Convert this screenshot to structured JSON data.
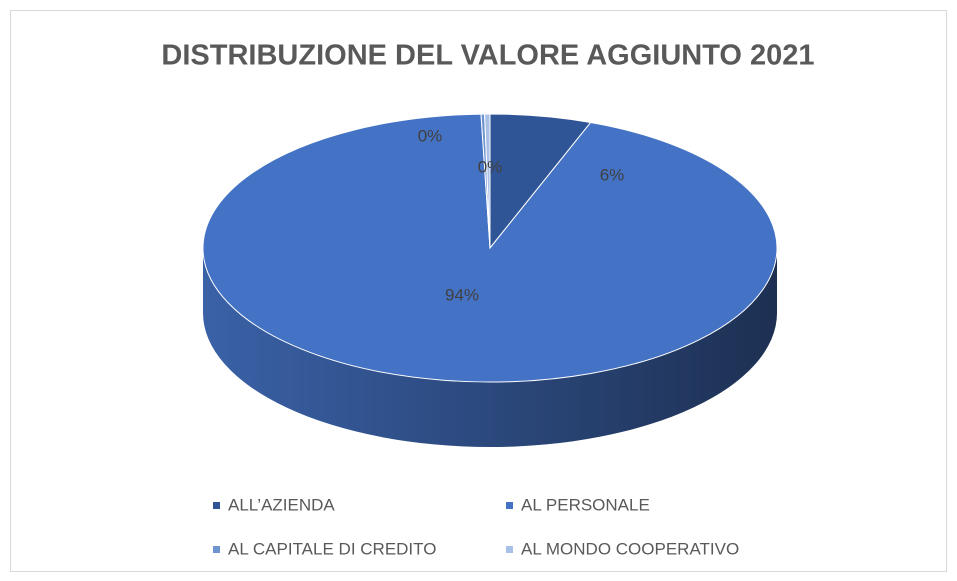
{
  "chart_data": {
    "type": "pie",
    "title": "DISTRIBUZIONE DEL VALORE AGGIUNTO 2021",
    "categories": [
      "ALL’AZIENDA",
      "AL PERSONALE",
      "AL CAPITALE DI CREDITO",
      "AL MONDO COOPERATIVO"
    ],
    "values": [
      5.7,
      93.8,
      0.2,
      0.3
    ],
    "value_labels": [
      "6%",
      "94%",
      "0%",
      "0%"
    ],
    "colors": [
      "#2f5597",
      "#4472c4",
      "#6f95d0",
      "#a9c0e6"
    ],
    "legend": "bottom"
  }
}
